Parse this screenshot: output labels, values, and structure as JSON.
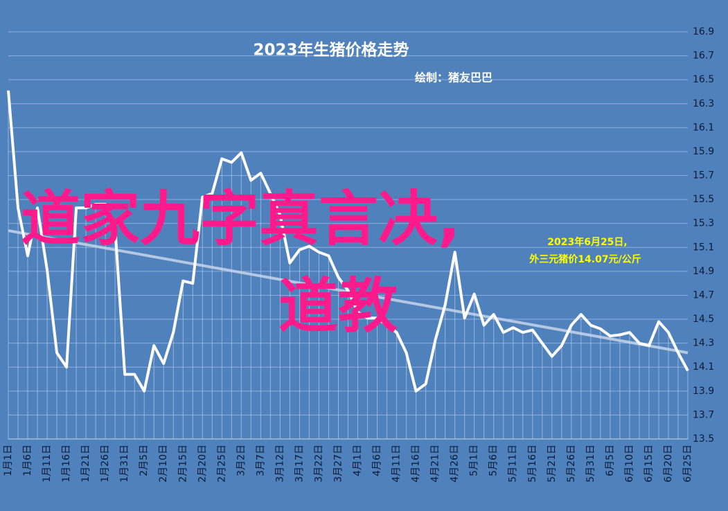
{
  "chart_data": {
    "type": "line",
    "title": "2023年生猪价格走势",
    "subtitle": "绘制：猪友巴巴",
    "annotation": [
      "2023年6月25日,",
      "外三元猪价14.07元/公斤"
    ],
    "overlay_text": [
      "道家九字真言决,",
      "道教"
    ],
    "categories": [
      "1月1日",
      null,
      "1月6日",
      null,
      "1月11日",
      null,
      "1月16日",
      null,
      "1月21日",
      null,
      "1月26日",
      null,
      "1月31日",
      null,
      "2月5日",
      null,
      "2月10日",
      null,
      "2月15日",
      null,
      "2月20日",
      null,
      "2月25日",
      null,
      "3月2日",
      null,
      "3月7日",
      null,
      "3月12日",
      null,
      "3月17日",
      null,
      "3月22日",
      null,
      "3月27日",
      null,
      "4月1日",
      null,
      "4月6日",
      null,
      "4月11日",
      null,
      "4月16日",
      null,
      "4月21日",
      null,
      "4月26日",
      null,
      "5月1日",
      null,
      "5月6日",
      null,
      "5月11日",
      null,
      "5月16日",
      null,
      "5月21日",
      null,
      "5月26日",
      null,
      "5月31日",
      null,
      "6月5日",
      null,
      "6月10日",
      null,
      "6月15日",
      null,
      "6月20日",
      null,
      "6月25日"
    ],
    "series": [
      {
        "color": "#ffffff",
        "values": [
          16.41,
          15.43,
          15.03,
          15.43,
          14.91,
          14.22,
          14.1,
          15.43,
          15.43,
          15.46,
          15.46,
          15.26,
          14.04,
          14.04,
          13.9,
          14.28,
          14.13,
          14.39,
          14.82,
          14.8,
          15.52,
          15.55,
          15.84,
          15.81,
          15.89,
          15.66,
          15.72,
          15.55,
          15.37,
          14.97,
          15.08,
          15.11,
          15.06,
          15.03,
          14.85,
          14.74,
          14.56,
          14.51,
          14.51,
          14.45,
          14.39,
          14.22,
          13.9,
          13.96,
          14.33,
          14.62,
          15.06,
          14.51,
          14.71,
          14.45,
          14.54,
          14.39,
          14.43,
          14.39,
          14.41,
          14.3,
          14.19,
          14.28,
          14.45,
          14.54,
          14.45,
          14.42,
          14.36,
          14.37,
          14.39,
          14.3,
          14.28,
          14.48,
          14.39,
          14.22,
          14.07
        ]
      }
    ],
    "trendline": {
      "color": "#c6d4ea",
      "start": 15.24,
      "end": 14.22
    },
    "ylim": [
      13.5,
      16.9
    ],
    "yticks": [
      13.5,
      13.7,
      13.9,
      14.1,
      14.3,
      14.5,
      14.7,
      14.9,
      15.1,
      15.3,
      15.5,
      15.7,
      15.9,
      16.1,
      16.3,
      16.5,
      16.7,
      16.9
    ],
    "grid": true
  }
}
